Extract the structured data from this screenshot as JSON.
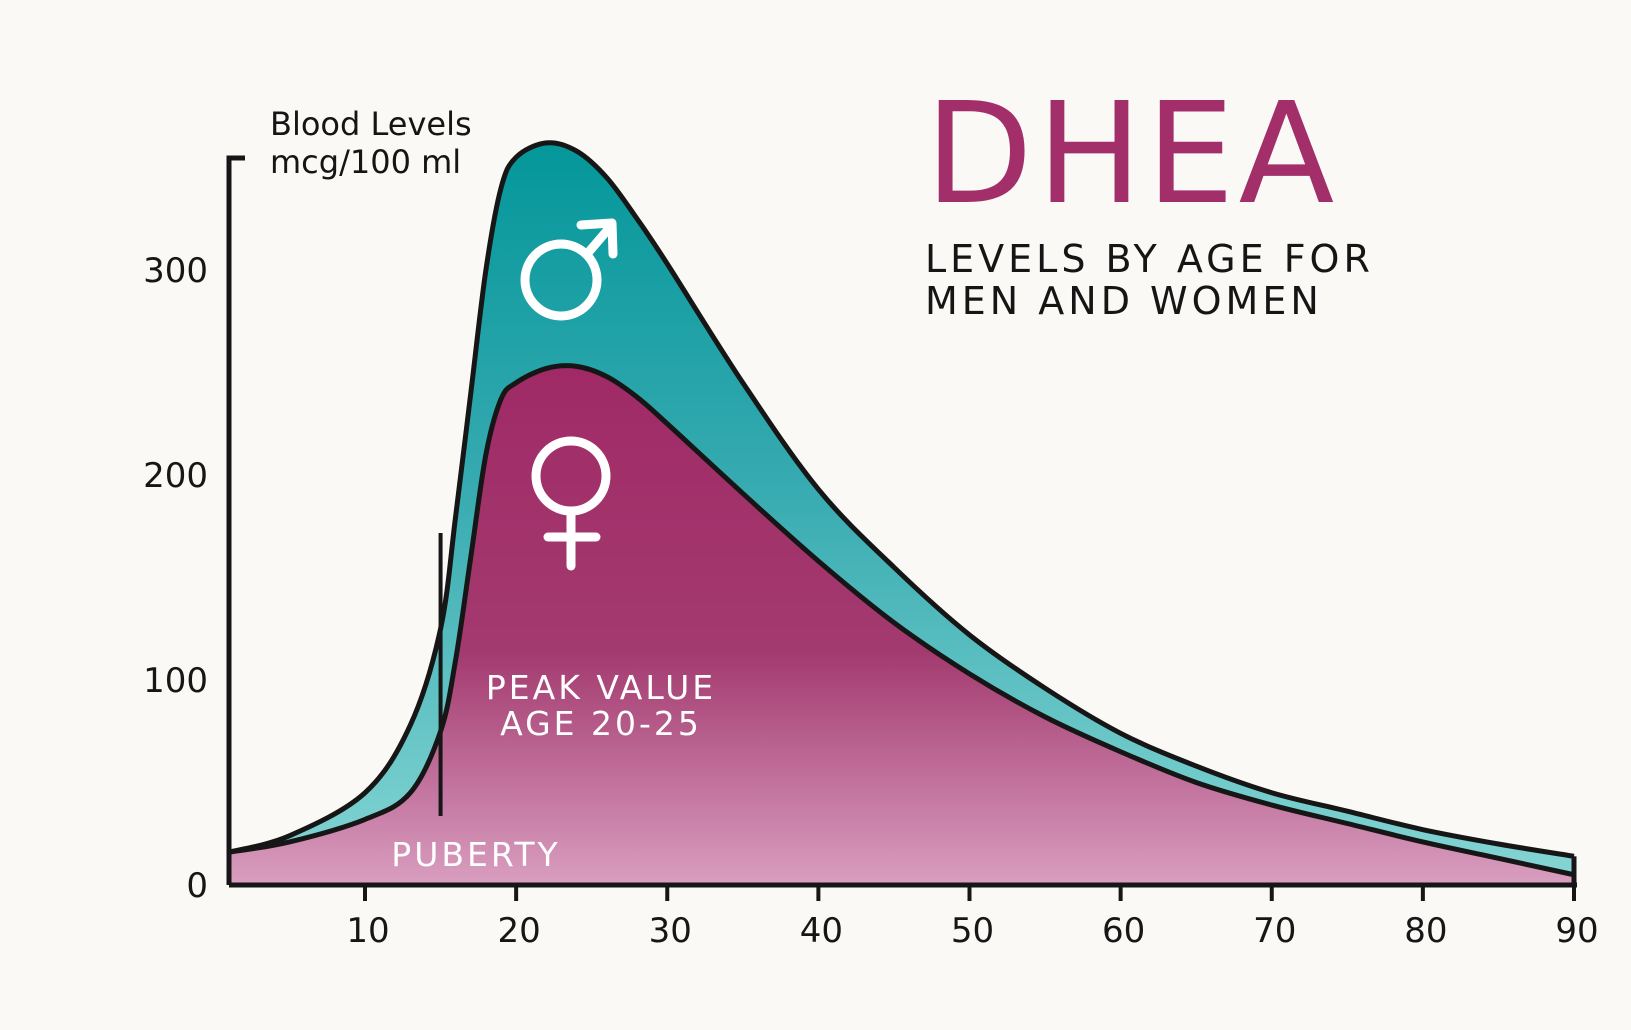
{
  "chart_data": {
    "type": "area",
    "title": "DHEA",
    "subtitle": [
      "LEVELS BY AGE FOR",
      "MEN AND WOMEN"
    ],
    "ylabel": [
      "Blood Levels",
      "mcg/100 ml"
    ],
    "xlabel": "",
    "xlim": [
      1,
      90
    ],
    "ylim": [
      0,
      350
    ],
    "xticks": [
      10,
      20,
      30,
      40,
      50,
      60,
      70,
      80,
      90
    ],
    "yticks": [
      0,
      100,
      200,
      300
    ],
    "series": [
      {
        "name": "men",
        "symbol": "male",
        "color": "#0f9596",
        "points": [
          [
            1,
            16
          ],
          [
            5,
            24
          ],
          [
            10,
            45
          ],
          [
            13,
            78
          ],
          [
            15,
            125
          ],
          [
            16,
            180
          ],
          [
            17,
            240
          ],
          [
            18,
            300
          ],
          [
            19,
            340
          ],
          [
            20,
            355
          ],
          [
            22,
            362
          ],
          [
            24,
            358
          ],
          [
            26,
            345
          ],
          [
            28,
            325
          ],
          [
            30,
            303
          ],
          [
            35,
            245
          ],
          [
            40,
            193
          ],
          [
            45,
            155
          ],
          [
            50,
            122
          ],
          [
            55,
            96
          ],
          [
            60,
            74
          ],
          [
            65,
            58
          ],
          [
            70,
            45
          ],
          [
            75,
            36
          ],
          [
            80,
            27
          ],
          [
            85,
            20
          ],
          [
            90,
            14
          ]
        ]
      },
      {
        "name": "women",
        "symbol": "female",
        "color": "#a02d68",
        "points": [
          [
            1,
            16
          ],
          [
            5,
            21
          ],
          [
            10,
            32
          ],
          [
            13,
            45
          ],
          [
            15,
            75
          ],
          [
            16,
            110
          ],
          [
            17,
            160
          ],
          [
            18,
            210
          ],
          [
            19,
            237
          ],
          [
            20,
            245
          ],
          [
            22,
            252
          ],
          [
            24,
            253
          ],
          [
            26,
            248
          ],
          [
            28,
            238
          ],
          [
            30,
            225
          ],
          [
            35,
            191
          ],
          [
            40,
            158
          ],
          [
            45,
            128
          ],
          [
            50,
            103
          ],
          [
            55,
            82
          ],
          [
            60,
            65
          ],
          [
            65,
            50
          ],
          [
            70,
            39
          ],
          [
            75,
            30
          ],
          [
            80,
            21
          ],
          [
            85,
            13
          ],
          [
            90,
            5
          ]
        ]
      }
    ],
    "annotations": [
      {
        "text": "PEAK VALUE",
        "x": 24
      },
      {
        "text": "AGE 20-25",
        "x": 24
      },
      {
        "text": "PUBERTY",
        "x": 15
      }
    ],
    "puberty_marker_x": 15
  }
}
